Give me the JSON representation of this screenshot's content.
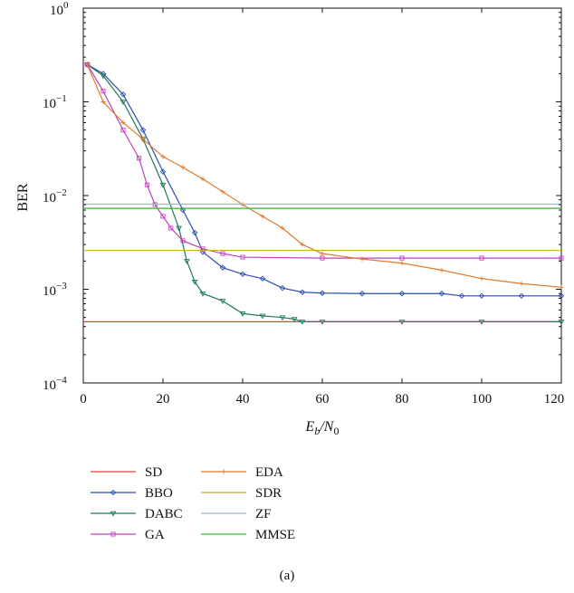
{
  "figure": {
    "caption": "(a)"
  },
  "chart_data": {
    "type": "line",
    "title": "",
    "xlabel_main": "E",
    "xlabel_sub": "b",
    "xlabel_mid": "/N",
    "xlabel_sub2": "0",
    "ylabel": "BER",
    "xlim": [
      0,
      120
    ],
    "ylim": [
      0.0001,
      1
    ],
    "yscale": "log",
    "grid": false,
    "legend_position": "below",
    "x_ticks": [
      "0",
      "20",
      "40",
      "60",
      "80",
      "100",
      "120"
    ],
    "x_tick_values": [
      0,
      20,
      40,
      60,
      80,
      100,
      120
    ],
    "y_ticks": [
      {
        "base": "10",
        "exp": "0"
      },
      {
        "base": "10",
        "exp": "−1"
      },
      {
        "base": "10",
        "exp": "−2"
      },
      {
        "base": "10",
        "exp": "−3"
      },
      {
        "base": "10",
        "exp": "−4"
      }
    ],
    "y_tick_values": [
      1,
      0.1,
      0.01,
      0.001,
      0.0001
    ],
    "series": [
      {
        "name": "SD",
        "color": "#e2403a",
        "marker": "none",
        "x": [
          0,
          120
        ],
        "y": [
          0.00045,
          0.00045
        ]
      },
      {
        "name": "BBO",
        "color": "#2a4fb0",
        "marker": "diamond",
        "x": [
          1,
          5,
          10,
          15,
          20,
          25,
          28,
          30,
          35,
          40,
          45,
          50,
          55,
          60,
          70,
          80,
          90,
          95,
          100,
          110,
          120
        ],
        "y": [
          0.25,
          0.2,
          0.12,
          0.05,
          0.018,
          0.007,
          0.004,
          0.0025,
          0.0017,
          0.00145,
          0.0013,
          0.00103,
          0.00093,
          0.00091,
          0.0009,
          0.0009,
          0.0009,
          0.00085,
          0.00085,
          0.00085,
          0.00085
        ]
      },
      {
        "name": "DABC",
        "color": "#1e7a5a",
        "marker": "triangle-down",
        "x": [
          1,
          5,
          10,
          15,
          20,
          24,
          26,
          28,
          30,
          35,
          40,
          45,
          50,
          53,
          55,
          60,
          80,
          100,
          120
        ],
        "y": [
          0.25,
          0.19,
          0.1,
          0.04,
          0.013,
          0.0045,
          0.002,
          0.0012,
          0.0009,
          0.00075,
          0.00055,
          0.00052,
          0.0005,
          0.00048,
          0.00045,
          0.00045,
          0.00045,
          0.00045,
          0.00045
        ]
      },
      {
        "name": "GA",
        "color": "#c040c0",
        "marker": "square",
        "x": [
          1,
          5,
          10,
          14,
          16,
          18,
          20,
          22,
          25,
          30,
          35,
          40,
          60,
          80,
          100,
          120
        ],
        "y": [
          0.25,
          0.13,
          0.05,
          0.025,
          0.013,
          0.008,
          0.006,
          0.0045,
          0.0033,
          0.0027,
          0.0024,
          0.0022,
          0.00215,
          0.00215,
          0.00215,
          0.00215
        ]
      },
      {
        "name": "EDA",
        "color": "#e07a2a",
        "marker": "plus",
        "x": [
          1,
          5,
          10,
          15,
          20,
          25,
          30,
          35,
          40,
          45,
          50,
          55,
          60,
          70,
          80,
          90,
          100,
          110,
          120
        ],
        "y": [
          0.25,
          0.1,
          0.06,
          0.04,
          0.026,
          0.02,
          0.015,
          0.011,
          0.008,
          0.006,
          0.0045,
          0.003,
          0.0024,
          0.0021,
          0.0019,
          0.0016,
          0.0013,
          0.00115,
          0.00105
        ]
      },
      {
        "name": "SDR",
        "color": "#c8b028",
        "marker": "none",
        "x": [
          0,
          120
        ],
        "y": [
          0.0026,
          0.0026
        ]
      },
      {
        "name": "ZF",
        "color": "#9ab3dc",
        "marker": "none",
        "x": [
          0,
          120
        ],
        "y": [
          0.0081,
          0.0081
        ]
      },
      {
        "name": "MMSE",
        "color": "#3fae3a",
        "marker": "none",
        "x": [
          0,
          120
        ],
        "y": [
          0.0073,
          0.0073
        ]
      }
    ]
  }
}
